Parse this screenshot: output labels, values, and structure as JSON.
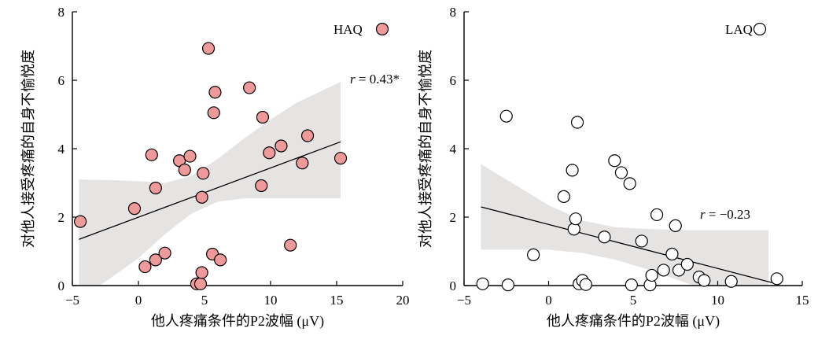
{
  "chart_data": [
    {
      "type": "scatter",
      "legend": "HAQ",
      "legend_placement": "top-right",
      "xlabel": "他人疼痛条件的P2波幅 (μV)",
      "ylabel": "对他人接受疼痛的自身不愉悦度",
      "xlim": [
        -5,
        20
      ],
      "ylim": [
        0,
        8
      ],
      "xticks": [
        -5,
        0,
        5,
        10,
        15,
        20
      ],
      "yticks": [
        0,
        2,
        4,
        6,
        8
      ],
      "marker_fill": "#ef9a9a",
      "marker_edge": "#000000",
      "band_color": "#e6e3e3",
      "r_prefix": "r",
      "r_value": " = 0.43*",
      "fit_line": {
        "x": [
          -4.5,
          15.3
        ],
        "y": [
          1.35,
          4.2
        ]
      },
      "band": {
        "x": [
          -4.5,
          -2,
          0,
          2,
          4,
          6,
          8,
          10,
          12,
          15.3
        ],
        "upper": [
          3.1,
          3.08,
          3.05,
          3.0,
          3.2,
          3.7,
          4.3,
          4.85,
          5.35,
          5.95
        ],
        "lower": [
          -0.4,
          0.25,
          0.8,
          1.5,
          2.1,
          2.45,
          2.55,
          2.55,
          2.55,
          2.55
        ]
      },
      "points": [
        {
          "x": -4.4,
          "y": 1.87
        },
        {
          "x": -0.3,
          "y": 2.25
        },
        {
          "x": 0.5,
          "y": 0.55
        },
        {
          "x": 1.0,
          "y": 3.82
        },
        {
          "x": 1.3,
          "y": 2.85
        },
        {
          "x": 1.3,
          "y": 0.75
        },
        {
          "x": 2.0,
          "y": 0.95
        },
        {
          "x": 3.1,
          "y": 3.65
        },
        {
          "x": 3.5,
          "y": 3.38
        },
        {
          "x": 3.9,
          "y": 3.78
        },
        {
          "x": 4.4,
          "y": 0.05
        },
        {
          "x": 4.7,
          "y": 0.05
        },
        {
          "x": 4.8,
          "y": 0.38
        },
        {
          "x": 4.8,
          "y": 2.58
        },
        {
          "x": 4.9,
          "y": 3.28
        },
        {
          "x": 5.3,
          "y": 6.93
        },
        {
          "x": 5.6,
          "y": 0.92
        },
        {
          "x": 5.7,
          "y": 5.05
        },
        {
          "x": 5.8,
          "y": 5.65
        },
        {
          "x": 6.2,
          "y": 0.75
        },
        {
          "x": 8.4,
          "y": 5.78
        },
        {
          "x": 9.3,
          "y": 2.92
        },
        {
          "x": 9.4,
          "y": 4.92
        },
        {
          "x": 9.9,
          "y": 3.88
        },
        {
          "x": 10.8,
          "y": 4.08
        },
        {
          "x": 11.5,
          "y": 1.18
        },
        {
          "x": 12.4,
          "y": 3.58
        },
        {
          "x": 12.8,
          "y": 4.38
        },
        {
          "x": 15.3,
          "y": 3.72
        }
      ]
    },
    {
      "type": "scatter",
      "legend": "LAQ",
      "legend_placement": "top-right",
      "xlabel": "他人疼痛条件的P2波幅 (μV)",
      "ylabel": "对他人接受疼痛的自身不愉悦度",
      "xlim": [
        -5,
        15
      ],
      "ylim": [
        0,
        8
      ],
      "xticks": [
        -5,
        0,
        5,
        10,
        15
      ],
      "yticks": [
        0,
        2,
        4,
        6,
        8
      ],
      "marker_fill": "#ffffff",
      "marker_edge": "#000000",
      "band_color": "#e6e3e3",
      "r_prefix": "r",
      "r_value": " = −0.23",
      "fit_line": {
        "x": [
          -4.0,
          13.5
        ],
        "y": [
          2.3,
          0.05
        ]
      },
      "band": {
        "x": [
          -4.0,
          -2,
          0,
          2,
          4,
          6,
          8,
          10,
          13
        ],
        "upper": [
          3.55,
          2.95,
          2.35,
          1.9,
          1.7,
          1.65,
          1.62,
          1.62,
          1.62
        ],
        "lower": [
          1.05,
          1.05,
          1.05,
          0.95,
          0.75,
          0.45,
          0.1,
          -0.25,
          -0.75
        ]
      },
      "points": [
        {
          "x": -3.9,
          "y": 0.05
        },
        {
          "x": -2.5,
          "y": 4.95
        },
        {
          "x": -2.4,
          "y": 0.02
        },
        {
          "x": -0.9,
          "y": 0.9
        },
        {
          "x": 0.9,
          "y": 2.6
        },
        {
          "x": 1.4,
          "y": 3.37
        },
        {
          "x": 1.5,
          "y": 1.65
        },
        {
          "x": 1.6,
          "y": 1.95
        },
        {
          "x": 1.7,
          "y": 4.77
        },
        {
          "x": 1.8,
          "y": 0.05
        },
        {
          "x": 2.0,
          "y": 0.15
        },
        {
          "x": 2.2,
          "y": 0.03
        },
        {
          "x": 3.9,
          "y": 3.65
        },
        {
          "x": 4.3,
          "y": 3.3
        },
        {
          "x": 4.8,
          "y": 2.98
        },
        {
          "x": 4.9,
          "y": 0.02
        },
        {
          "x": 5.5,
          "y": 1.3
        },
        {
          "x": 6.0,
          "y": 0.02
        },
        {
          "x": 6.1,
          "y": 0.3
        },
        {
          "x": 6.4,
          "y": 2.07
        },
        {
          "x": 6.8,
          "y": 0.45
        },
        {
          "x": 7.3,
          "y": 0.92
        },
        {
          "x": 7.5,
          "y": 1.75
        },
        {
          "x": 7.7,
          "y": 0.45
        },
        {
          "x": 8.2,
          "y": 0.62
        },
        {
          "x": 8.9,
          "y": 0.25
        },
        {
          "x": 9.2,
          "y": 0.15
        },
        {
          "x": 10.8,
          "y": 0.12
        },
        {
          "x": 13.5,
          "y": 0.2
        },
        {
          "x": 3.3,
          "y": 1.42
        }
      ]
    }
  ]
}
